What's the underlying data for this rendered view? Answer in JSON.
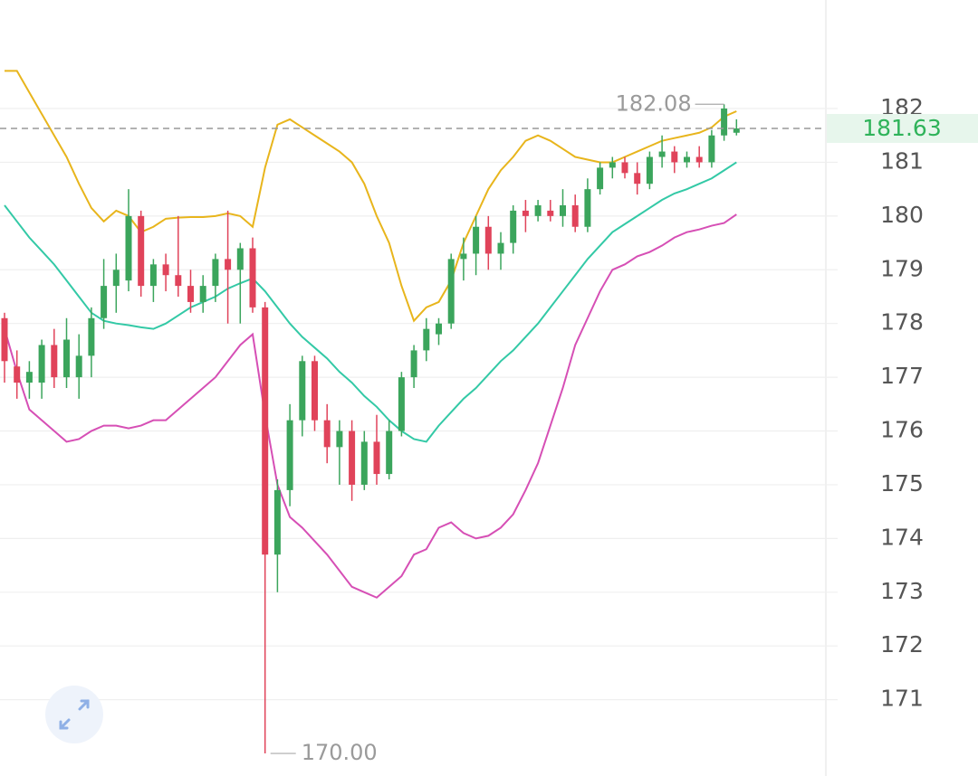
{
  "chart_data": {
    "type": "candlestick",
    "open": [
      178.1,
      177.2,
      176.9,
      176.9,
      177.6,
      177.0,
      177.0,
      177.4,
      178.1,
      178.7,
      178.8,
      180.0,
      178.7,
      179.1,
      178.9,
      178.7,
      178.4,
      178.7,
      179.2,
      179.0,
      179.4,
      178.3,
      173.7,
      174.9,
      176.2,
      177.3,
      176.2,
      175.7,
      176.0,
      175.0,
      175.8,
      175.2,
      176.0,
      177.0,
      177.5,
      177.8,
      178.0,
      179.2,
      179.3,
      179.8,
      179.3,
      179.5,
      180.1,
      180.0,
      180.1,
      180.0,
      180.2,
      179.8,
      180.5,
      180.9,
      181.0,
      180.8,
      180.6,
      181.1,
      181.2,
      181.0,
      181.1,
      181.0,
      181.5,
      181.55
    ],
    "high": [
      178.2,
      177.5,
      177.3,
      177.7,
      177.9,
      178.1,
      177.8,
      178.3,
      179.2,
      179.3,
      180.5,
      180.1,
      179.2,
      179.3,
      180.0,
      179.0,
      178.9,
      179.3,
      180.1,
      179.5,
      179.6,
      178.4,
      175.1,
      176.5,
      177.4,
      177.4,
      176.5,
      176.2,
      176.2,
      176.0,
      176.3,
      176.2,
      177.1,
      177.6,
      178.1,
      178.1,
      179.3,
      179.6,
      180.0,
      180.0,
      179.7,
      180.2,
      180.3,
      180.3,
      180.3,
      180.5,
      180.4,
      180.7,
      181.0,
      181.1,
      181.1,
      181.0,
      181.2,
      181.5,
      181.3,
      181.2,
      181.3,
      181.6,
      182.08,
      181.8
    ],
    "low": [
      176.9,
      176.6,
      176.6,
      176.6,
      176.8,
      176.8,
      176.6,
      177.0,
      177.9,
      178.2,
      178.6,
      178.5,
      178.4,
      178.6,
      178.5,
      178.2,
      178.2,
      178.4,
      178.0,
      178.0,
      178.2,
      170.0,
      173.0,
      174.6,
      175.9,
      176.0,
      175.4,
      175.0,
      174.7,
      174.9,
      175.0,
      175.1,
      175.9,
      176.8,
      177.3,
      177.6,
      177.9,
      178.8,
      178.9,
      179.0,
      179.0,
      179.3,
      179.7,
      179.9,
      179.9,
      179.8,
      179.7,
      179.7,
      180.4,
      180.7,
      180.7,
      180.4,
      180.5,
      180.9,
      180.8,
      180.9,
      180.9,
      180.9,
      181.4,
      181.5
    ],
    "close": [
      177.3,
      176.9,
      177.1,
      177.6,
      177.0,
      177.7,
      177.4,
      178.1,
      178.7,
      179.0,
      180.0,
      178.7,
      179.1,
      178.9,
      178.7,
      178.4,
      178.7,
      179.2,
      179.0,
      179.4,
      178.3,
      173.7,
      174.9,
      176.2,
      177.3,
      176.2,
      175.7,
      176.0,
      175.0,
      175.8,
      175.2,
      176.0,
      177.0,
      177.5,
      177.9,
      178.0,
      179.2,
      179.3,
      179.8,
      179.3,
      179.5,
      180.1,
      180.0,
      180.2,
      180.0,
      180.2,
      179.8,
      180.5,
      180.9,
      181.0,
      180.8,
      180.6,
      181.1,
      181.2,
      181.0,
      181.1,
      181.0,
      181.5,
      182.0,
      181.63
    ],
    "up_color": "#3ba55c",
    "down_color": "#e0435a",
    "bands": [
      {
        "color": "#e8b51c",
        "values": [
          182.7,
          182.7,
          182.3,
          181.9,
          181.5,
          181.1,
          180.6,
          180.15,
          179.9,
          180.1,
          180.0,
          179.7,
          179.8,
          179.95,
          179.97,
          179.98,
          179.98,
          180.0,
          180.05,
          180.0,
          179.8,
          180.9,
          181.7,
          181.8,
          181.65,
          181.5,
          181.35,
          181.2,
          181.0,
          180.6,
          180.0,
          179.5,
          178.7,
          178.05,
          178.3,
          178.4,
          178.8,
          179.5,
          180.0,
          180.5,
          180.85,
          181.1,
          181.4,
          181.5,
          181.4,
          181.25,
          181.1,
          181.05,
          181.0,
          181.0,
          181.1,
          181.2,
          181.3,
          181.4,
          181.45,
          181.5,
          181.55,
          181.65,
          181.85,
          181.95
        ]
      },
      {
        "color": "#33c9a6",
        "values": [
          180.2,
          179.9,
          179.6,
          179.35,
          179.1,
          178.8,
          178.5,
          178.2,
          178.05,
          178.0,
          177.97,
          177.93,
          177.9,
          178.0,
          178.15,
          178.3,
          178.4,
          178.5,
          178.65,
          178.75,
          178.84,
          178.6,
          178.3,
          178.0,
          177.75,
          177.55,
          177.35,
          177.1,
          176.9,
          176.65,
          176.45,
          176.2,
          176.0,
          175.85,
          175.8,
          176.1,
          176.35,
          176.6,
          176.8,
          177.05,
          177.3,
          177.5,
          177.75,
          178.0,
          178.3,
          178.6,
          178.9,
          179.2,
          179.45,
          179.7,
          179.85,
          180.0,
          180.15,
          180.3,
          180.42,
          180.5,
          180.6,
          180.7,
          180.85,
          181.0
        ]
      },
      {
        "color": "#d64fb5",
        "values": [
          177.9,
          177.1,
          176.4,
          176.2,
          176.0,
          175.8,
          175.85,
          176.0,
          176.1,
          176.1,
          176.05,
          176.1,
          176.2,
          176.2,
          176.4,
          176.6,
          176.8,
          177.0,
          177.3,
          177.6,
          177.8,
          176.3,
          175.0,
          174.4,
          174.2,
          173.95,
          173.7,
          173.4,
          173.1,
          173.0,
          172.9,
          173.1,
          173.3,
          173.7,
          173.8,
          174.2,
          174.3,
          174.1,
          174.0,
          174.05,
          174.2,
          174.45,
          174.9,
          175.4,
          176.1,
          176.8,
          177.6,
          178.1,
          178.6,
          179.0,
          179.1,
          179.25,
          179.33,
          179.45,
          179.6,
          179.7,
          179.75,
          179.82,
          179.87,
          180.03
        ]
      }
    ],
    "max_label": {
      "value": 182.08,
      "label": "182.08"
    },
    "min_label": {
      "value": 170.0,
      "label": "170.00"
    },
    "last_price": {
      "value": 181.63,
      "label": "181.63",
      "color": "#2fb35a"
    },
    "ylim": [
      169.58,
      184.02
    ],
    "yticks": [
      171,
      172,
      173,
      174,
      175,
      176,
      177,
      178,
      179,
      180,
      181,
      182
    ],
    "grid": true
  }
}
